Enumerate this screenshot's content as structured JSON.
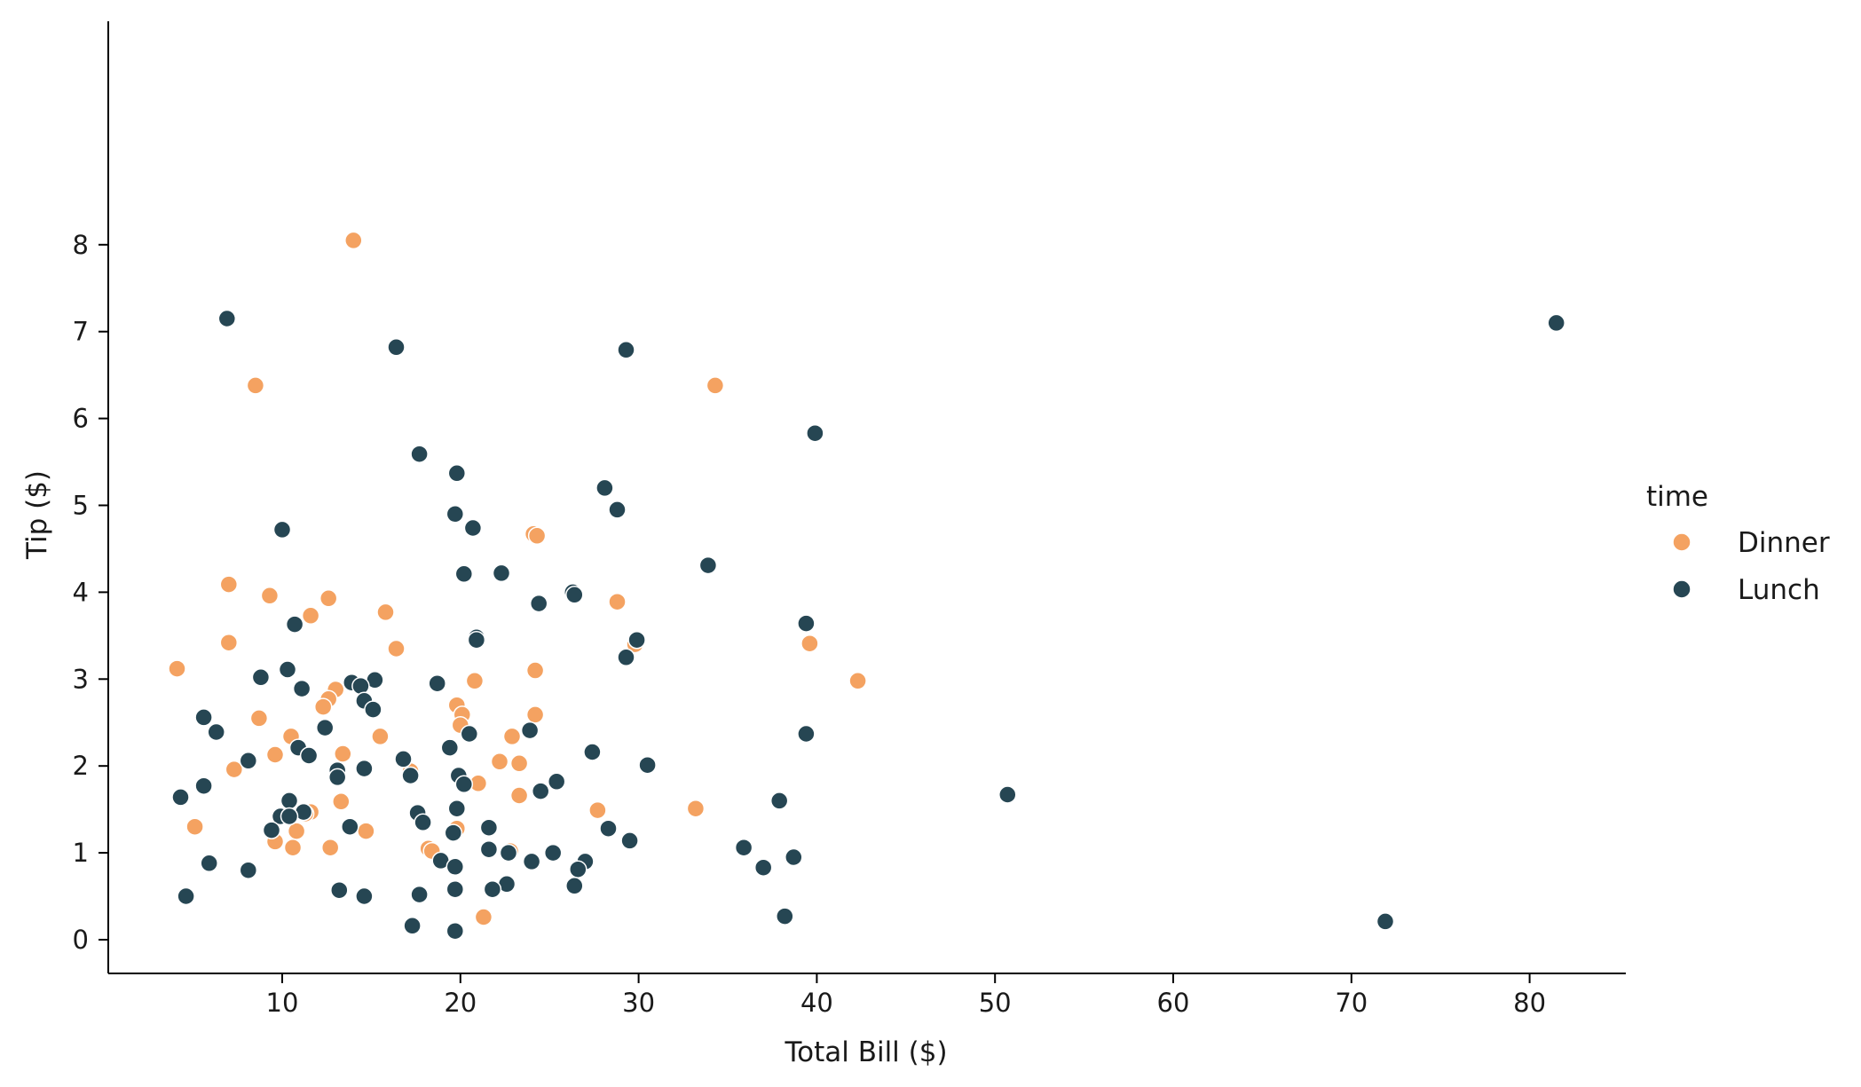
{
  "chart_data": {
    "type": "scatter",
    "title": "",
    "xlabel": "Total Bill ($)",
    "ylabel": "Tip ($)",
    "xlim": [
      0,
      85.5
    ],
    "ylim": [
      -0.3,
      8.5
    ],
    "xticks": [
      10,
      20,
      30,
      40,
      50,
      60,
      70,
      80
    ],
    "yticks": [
      0,
      1,
      2,
      3,
      4,
      5,
      6,
      7,
      8
    ],
    "grid": false,
    "legend": {
      "title": "time",
      "placement": "right"
    },
    "series": [
      {
        "name": "Dinner",
        "color": "#F4A261",
        "points": [
          [
            14.0,
            8.05
          ],
          [
            8.5,
            6.38
          ],
          [
            34.3,
            6.38
          ],
          [
            24.1,
            4.67
          ],
          [
            24.3,
            4.65
          ],
          [
            7.0,
            4.09
          ],
          [
            9.3,
            3.96
          ],
          [
            12.6,
            3.93
          ],
          [
            11.6,
            3.73
          ],
          [
            15.8,
            3.77
          ],
          [
            28.8,
            3.89
          ],
          [
            39.6,
            3.41
          ],
          [
            29.8,
            3.4
          ],
          [
            7.0,
            3.42
          ],
          [
            16.4,
            3.35
          ],
          [
            4.1,
            3.12
          ],
          [
            24.2,
            3.1
          ],
          [
            42.3,
            2.98
          ],
          [
            20.8,
            2.98
          ],
          [
            13.0,
            2.88
          ],
          [
            12.6,
            2.77
          ],
          [
            12.3,
            2.68
          ],
          [
            19.8,
            2.7
          ],
          [
            8.7,
            2.55
          ],
          [
            20.1,
            2.59
          ],
          [
            24.2,
            2.59
          ],
          [
            20.0,
            2.47
          ],
          [
            10.5,
            2.34
          ],
          [
            15.5,
            2.34
          ],
          [
            22.9,
            2.34
          ],
          [
            9.6,
            2.13
          ],
          [
            13.4,
            2.14
          ],
          [
            22.2,
            2.05
          ],
          [
            23.3,
            2.03
          ],
          [
            7.3,
            1.96
          ],
          [
            17.2,
            1.94
          ],
          [
            21.0,
            1.8
          ],
          [
            23.3,
            1.66
          ],
          [
            13.3,
            1.59
          ],
          [
            33.2,
            1.51
          ],
          [
            27.7,
            1.49
          ],
          [
            11.6,
            1.47
          ],
          [
            11.3,
            1.45
          ],
          [
            5.1,
            1.3
          ],
          [
            19.8,
            1.28
          ],
          [
            10.8,
            1.25
          ],
          [
            14.7,
            1.25
          ],
          [
            9.6,
            1.13
          ],
          [
            10.6,
            1.06
          ],
          [
            12.7,
            1.06
          ],
          [
            18.2,
            1.05
          ],
          [
            18.4,
            1.02
          ],
          [
            22.8,
            1.02
          ],
          [
            21.3,
            0.26
          ]
        ]
      },
      {
        "name": "Lunch",
        "color": "#264653",
        "points": [
          [
            6.9,
            7.15
          ],
          [
            81.5,
            7.1
          ],
          [
            16.4,
            6.82
          ],
          [
            29.3,
            6.79
          ],
          [
            39.9,
            5.83
          ],
          [
            17.7,
            5.59
          ],
          [
            19.8,
            5.37
          ],
          [
            28.1,
            5.2
          ],
          [
            28.8,
            4.95
          ],
          [
            19.7,
            4.9
          ],
          [
            20.7,
            4.74
          ],
          [
            10.0,
            4.72
          ],
          [
            33.9,
            4.31
          ],
          [
            20.2,
            4.21
          ],
          [
            22.3,
            4.22
          ],
          [
            26.3,
            4.0
          ],
          [
            26.4,
            3.97
          ],
          [
            24.4,
            3.87
          ],
          [
            39.4,
            3.64
          ],
          [
            10.7,
            3.63
          ],
          [
            20.9,
            3.48
          ],
          [
            20.9,
            3.45
          ],
          [
            29.9,
            3.45
          ],
          [
            29.3,
            3.25
          ],
          [
            10.3,
            3.11
          ],
          [
            8.8,
            3.02
          ],
          [
            15.2,
            2.99
          ],
          [
            13.9,
            2.96
          ],
          [
            18.7,
            2.95
          ],
          [
            14.4,
            2.92
          ],
          [
            11.1,
            2.89
          ],
          [
            14.6,
            2.75
          ],
          [
            15.1,
            2.65
          ],
          [
            5.6,
            2.56
          ],
          [
            6.3,
            2.39
          ],
          [
            12.4,
            2.44
          ],
          [
            23.9,
            2.41
          ],
          [
            20.5,
            2.37
          ],
          [
            39.4,
            2.37
          ],
          [
            10.9,
            2.21
          ],
          [
            19.4,
            2.21
          ],
          [
            27.4,
            2.16
          ],
          [
            11.5,
            2.12
          ],
          [
            16.8,
            2.08
          ],
          [
            8.1,
            2.06
          ],
          [
            30.5,
            2.01
          ],
          [
            13.1,
            1.95
          ],
          [
            14.6,
            1.97
          ],
          [
            19.9,
            1.89
          ],
          [
            13.1,
            1.87
          ],
          [
            17.2,
            1.89
          ],
          [
            20.2,
            1.79
          ],
          [
            25.4,
            1.82
          ],
          [
            5.6,
            1.77
          ],
          [
            24.5,
            1.71
          ],
          [
            4.3,
            1.64
          ],
          [
            50.7,
            1.67
          ],
          [
            10.4,
            1.6
          ],
          [
            37.9,
            1.6
          ],
          [
            19.8,
            1.51
          ],
          [
            11.2,
            1.47
          ],
          [
            17.6,
            1.46
          ],
          [
            9.9,
            1.42
          ],
          [
            10.4,
            1.42
          ],
          [
            17.9,
            1.35
          ],
          [
            13.8,
            1.3
          ],
          [
            21.6,
            1.29
          ],
          [
            9.4,
            1.26
          ],
          [
            28.3,
            1.28
          ],
          [
            19.6,
            1.23
          ],
          [
            29.5,
            1.14
          ],
          [
            35.9,
            1.06
          ],
          [
            21.6,
            1.04
          ],
          [
            25.2,
            1.0
          ],
          [
            22.7,
            1.0
          ],
          [
            38.7,
            0.95
          ],
          [
            18.9,
            0.91
          ],
          [
            24.0,
            0.9
          ],
          [
            27.0,
            0.9
          ],
          [
            5.9,
            0.88
          ],
          [
            19.7,
            0.84
          ],
          [
            37.0,
            0.83
          ],
          [
            26.6,
            0.81
          ],
          [
            8.1,
            0.8
          ],
          [
            22.6,
            0.64
          ],
          [
            26.4,
            0.62
          ],
          [
            21.8,
            0.58
          ],
          [
            13.2,
            0.57
          ],
          [
            19.7,
            0.58
          ],
          [
            4.6,
            0.5
          ],
          [
            14.6,
            0.5
          ],
          [
            17.7,
            0.52
          ],
          [
            38.2,
            0.27
          ],
          [
            71.9,
            0.21
          ],
          [
            17.3,
            0.16
          ],
          [
            19.7,
            0.1
          ]
        ]
      }
    ]
  }
}
